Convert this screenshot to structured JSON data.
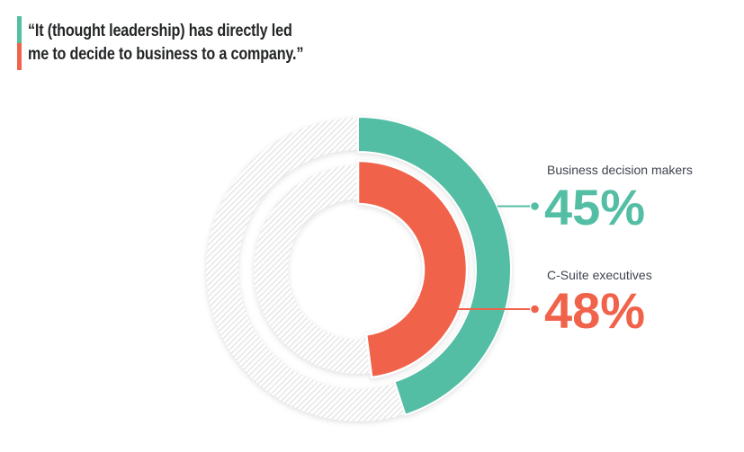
{
  "quote": {
    "line1": "“It (thought leadership) has directly led",
    "line2": "me to decide to business to a company.”"
  },
  "chart_data": {
    "type": "donut",
    "title": "",
    "unit": "%",
    "start_angle_deg": 0,
    "sweep_direction": "clockwise",
    "remainder_fill": "diagonal-hatch",
    "hatch_line_color": "#E6E6E6",
    "background_color": "#FFFFFF",
    "rings": [
      {
        "ring": "outer",
        "label": "Business decision makers",
        "value_pct": 45,
        "color": "#54BEA5"
      },
      {
        "ring": "inner",
        "label": "C-Suite executives",
        "value_pct": 48,
        "color": "#F0634A"
      }
    ]
  },
  "callouts": {
    "business_decision_makers": {
      "label": "Business decision makers",
      "value_text": "45%"
    },
    "c_suite_executives": {
      "label": "C-Suite executives",
      "value_text": "48%"
    }
  },
  "colors": {
    "teal": "#54BEA5",
    "coral": "#F0634A",
    "label_text": "#3E454E",
    "quote_text": "#232527"
  }
}
